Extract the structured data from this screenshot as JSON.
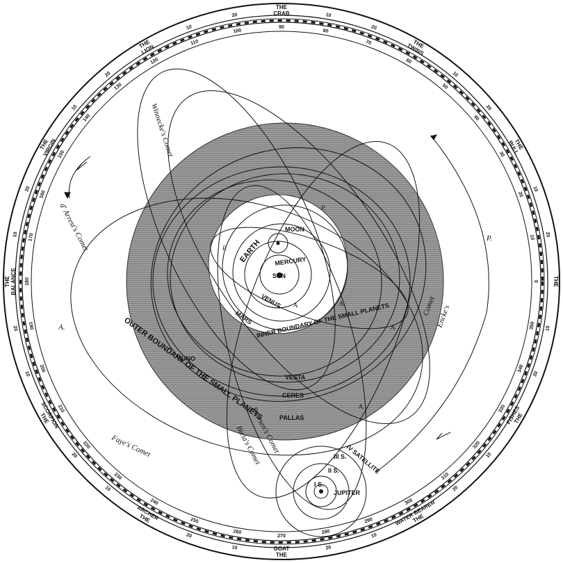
{
  "zodiac": [
    {
      "id": "crab",
      "title": "THE",
      "name": "CRAB"
    },
    {
      "id": "twins",
      "title": "THE",
      "name": "TWINS"
    },
    {
      "id": "bull",
      "title": "THE",
      "name": "BULL"
    },
    {
      "id": "ram",
      "title": "THE",
      "name": ""
    },
    {
      "id": "fishes",
      "title": "THE",
      "name": "FISHES"
    },
    {
      "id": "water-bearer",
      "title": "THE",
      "name": "WATER BEARER"
    },
    {
      "id": "goat",
      "title": "THE",
      "name": "GOAT"
    },
    {
      "id": "archer",
      "title": "THE",
      "name": "ARCHER"
    },
    {
      "id": "scorpion",
      "title": "THE",
      "name": "SCORPION"
    },
    {
      "id": "balance",
      "title": "THE",
      "name": "BALANCE"
    },
    {
      "id": "virgin",
      "title": "THE",
      "name": "VIRGIN"
    },
    {
      "id": "lion",
      "title": "THE",
      "name": "LION"
    }
  ],
  "degree_marks": {
    "outer": [
      "10",
      "20",
      "10",
      "20",
      "10",
      "20",
      "10",
      "20",
      "10",
      "20",
      "10",
      "20",
      "10",
      "20",
      "10",
      "20",
      "10",
      "20",
      "10",
      "20",
      "10",
      "20",
      "10",
      "20"
    ],
    "inner": [
      "90",
      "80",
      "70",
      "60",
      "50",
      "40",
      "30",
      "20",
      "10",
      "0",
      "350",
      "340",
      "330",
      "320",
      "310",
      "300",
      "290",
      "280",
      "270",
      "260",
      "250",
      "240",
      "230",
      "220",
      "210",
      "200",
      "190",
      "180",
      "170",
      "160",
      "150",
      "140",
      "130",
      "120",
      "110",
      "100"
    ]
  },
  "bodies": {
    "sun": "SUN",
    "mercury": "MERCURY",
    "venus": "VENUS",
    "earth": "EARTH",
    "moon": "MOON",
    "mars": "MARS",
    "vesta": "VESTA",
    "ceres": "CERES",
    "pallas": "PALLAS",
    "juno": "JUNO",
    "jupiter": "JUPITER",
    "satellite_1": "I S.",
    "satellite_2": "II S.",
    "satellite_3": "III S.",
    "satellite_4": "IV SATELLITE"
  },
  "boundaries": {
    "inner": "INNER BOUNDARY OF THE SMALL PLANETS",
    "outer": "OUTER BOUNDARY OF THE SMALL PLANETS"
  },
  "comets": {
    "winnecke": "Winnecke's Comet",
    "darrest": "d' Arrest's Comet",
    "faye": "Faye's Comet",
    "biela": "Biela's Comet",
    "brorsen": "Brorsen's Comet",
    "encke_1": "Encke's",
    "encke_2": "Comet"
  },
  "markers": {
    "perihelion": "P.",
    "aphelion": "A."
  }
}
